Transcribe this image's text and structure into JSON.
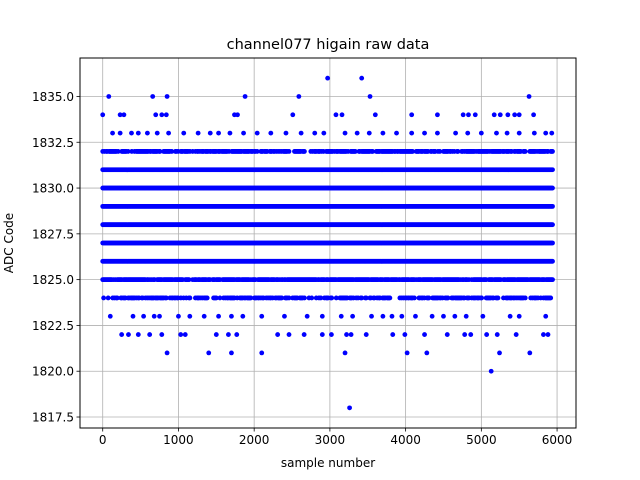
{
  "chart_data": {
    "type": "scatter",
    "title": "channel077 higain raw data",
    "xlabel": "sample number",
    "ylabel": "ADC Code",
    "xlim": [
      -300,
      6250
    ],
    "ylim": [
      1816.9,
      1837.1
    ],
    "xticks": [
      0,
      1000,
      2000,
      3000,
      4000,
      5000,
      6000
    ],
    "xtick_labels": [
      "0",
      "1000",
      "2000",
      "3000",
      "4000",
      "5000",
      "6000"
    ],
    "yticks": [
      1817.5,
      1820.0,
      1822.5,
      1825.0,
      1827.5,
      1830.0,
      1832.5,
      1835.0
    ],
    "ytick_labels": [
      "1817.5",
      "1820.0",
      "1822.5",
      "1825.0",
      "1827.5",
      "1830.0",
      "1832.5",
      "1835.0"
    ],
    "grid": true,
    "marker_color": "#0000ff",
    "marker": "filled-circle",
    "series": [
      {
        "x_range": [
          0,
          5940
        ],
        "dense_bands": [
          {
            "y": 1824,
            "x_range": [
              0,
              5940
            ],
            "density": 0.55
          },
          {
            "y": 1825,
            "x_range": [
              0,
              5940
            ],
            "density": 0.85
          },
          {
            "y": 1826,
            "x_range": [
              0,
              5940
            ],
            "density": 1.0
          },
          {
            "y": 1827,
            "x_range": [
              0,
              5940
            ],
            "density": 1.0
          },
          {
            "y": 1828,
            "x_range": [
              0,
              5940
            ],
            "density": 1.0
          },
          {
            "y": 1829,
            "x_range": [
              0,
              5940
            ],
            "density": 1.0
          },
          {
            "y": 1830,
            "x_range": [
              0,
              5940
            ],
            "density": 1.0
          },
          {
            "y": 1831,
            "x_range": [
              0,
              5940
            ],
            "density": 1.0
          },
          {
            "y": 1832,
            "x_range": [
              0,
              5940
            ],
            "density": 0.7
          }
        ],
        "sparse_points": [
          {
            "y": 1823,
            "x": [
              100,
              400,
              540,
              680,
              750,
              1000,
              1150,
              1340,
              1530,
              1700,
              1850,
              2100,
              2400,
              2700,
              2900,
              3150,
              3300,
              3550,
              3700,
              3820,
              3950,
              4130,
              4350,
              4500,
              4650,
              4800,
              5020,
              5380,
              5500,
              5850
            ]
          },
          {
            "y": 1833,
            "x": [
              130,
              230,
              380,
              470,
              590,
              720,
              870,
              1070,
              1260,
              1420,
              1530,
              1680,
              1860,
              2040,
              2220,
              2420,
              2620,
              2800,
              2920,
              3200,
              3360,
              3520,
              3700,
              3880,
              4080,
              4250,
              4420,
              4660,
              4820,
              5000,
              5200,
              5340,
              5500,
              5700,
              5850,
              5930
            ]
          },
          {
            "y": 1834,
            "x": [
              0,
              230,
              280,
              700,
              780,
              840,
              1740,
              1780,
              2510,
              3080,
              3160,
              3600,
              4080,
              4420,
              4760,
              4830,
              4920,
              5170,
              5250,
              5350,
              5440,
              5500,
              5690
            ]
          },
          {
            "y": 1822,
            "x": [
              250,
              340,
              470,
              620,
              780,
              1030,
              1090,
              1500,
              1660,
              1770,
              2310,
              2460,
              2660,
              2900,
              3020,
              3220,
              3280,
              3480,
              3830,
              3990,
              4250,
              4550,
              4780,
              4860,
              5070,
              5210,
              5460,
              5820,
              5880
            ]
          },
          {
            "y": 1835,
            "x": [
              80,
              660,
              850,
              1880,
              2590,
              3530,
              5630
            ]
          },
          {
            "y": 1836,
            "x": [
              2970,
              3420
            ]
          },
          {
            "y": 1821,
            "x": [
              850,
              1400,
              1700,
              2100,
              3200,
              4020,
              4280,
              5240,
              5640
            ]
          },
          {
            "y": 1820,
            "x": [
              5130
            ]
          },
          {
            "y": 1818,
            "x": [
              3260
            ]
          }
        ]
      }
    ]
  }
}
